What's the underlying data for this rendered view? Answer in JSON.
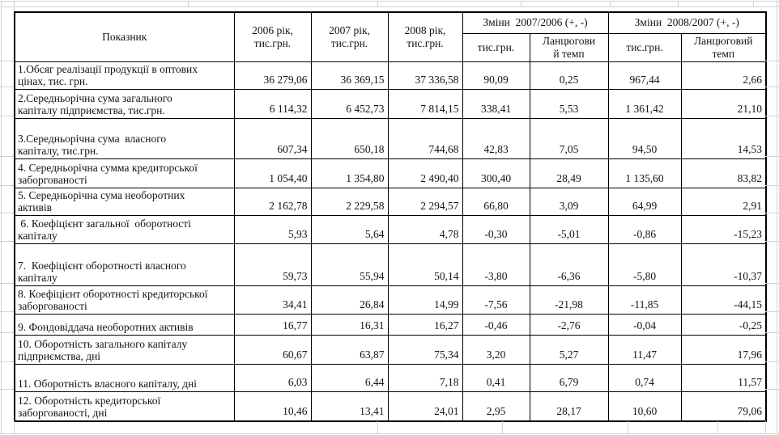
{
  "sheet": {
    "table": {
      "header": {
        "indicator": "Показник",
        "years": [
          "2006 рік,\nтис.грн.",
          "2007 рік,\nтис.грн.",
          "2008 рік,\nтис.грн."
        ],
        "groups": [
          {
            "label": "Зміни  2007/2006 (+, -)",
            "sub": [
              "тис.грн.",
              "Ланцюгови\nй темп"
            ]
          },
          {
            "label": "Зміни  2008/2007 (+, -)",
            "sub": [
              "тис.грн.",
              "Ланцюговий\nтемп"
            ]
          }
        ]
      },
      "rows": [
        {
          "label": "1.Обсяг реалізації продукції в оптових\nцінах, тис. грн.",
          "values": [
            "36 279,06",
            "36 369,15",
            "37 336,58",
            "90,09",
            "0,25",
            "967,44",
            "2,66"
          ]
        },
        {
          "label": "2.Середньорічна сума загального\nкапіталу підприємства, тис.грн.",
          "values": [
            "6 114,32",
            "6 452,73",
            "7 814,15",
            "338,41",
            "5,53",
            "1 361,42",
            "21,10"
          ]
        },
        {
          "label": "3.Середньорічна сума  власного\nкапіталу, тис.грн.",
          "values": [
            "607,34",
            "650,18",
            "744,68",
            "42,83",
            "7,05",
            "94,50",
            "14,53"
          ]
        },
        {
          "label": "4. Середньорічна сумма кредиторської\nзаборгованості",
          "values": [
            "1 054,40",
            "1 354,80",
            "2 490,40",
            "300,40",
            "28,49",
            "1 135,60",
            "83,82"
          ]
        },
        {
          "label": "5. Середньорічна сума необоротних\nактивів",
          "values": [
            "2 162,78",
            "2 229,58",
            "2 294,57",
            "66,80",
            "3,09",
            "64,99",
            "2,91"
          ]
        },
        {
          "label": " 6. Коефіцієнт загальної  оборотності\nкапіталу",
          "values": [
            "5,93",
            "5,64",
            "4,78",
            "-0,30",
            "-5,01",
            "-0,86",
            "-15,23"
          ]
        },
        {
          "label": "7.  Коефіцієнт оборотності власного\nкапіталу",
          "values": [
            "59,73",
            "55,94",
            "50,14",
            "-3,80",
            "-6,36",
            "-5,80",
            "-10,37"
          ]
        },
        {
          "label": "8. Коефіцієнт оборотності кредиторської\nзаборгованості",
          "values": [
            "34,41",
            "26,84",
            "14,99",
            "-7,56",
            "-21,98",
            "-11,85",
            "-44,15"
          ]
        },
        {
          "label": "9. Фондовіддача необоротних активів",
          "values": [
            "16,77",
            "16,31",
            "16,27",
            "-0,46",
            "-2,76",
            "-0,04",
            "-0,25"
          ]
        },
        {
          "label": "10. Оборотність загального капіталу\nпідприємства, дні",
          "values": [
            "60,67",
            "63,87",
            "75,34",
            "3,20",
            "5,27",
            "11,47",
            "17,96"
          ]
        },
        {
          "label": "11. Оборотність власного капіталу, дні",
          "values": [
            "6,03",
            "6,44",
            "7,18",
            "0,41",
            "6,79",
            "0,74",
            "11,57"
          ]
        },
        {
          "label": "12. Оборотність кредиторської\nзаборгованості, дні",
          "values": [
            "10,46",
            "13,41",
            "24,01",
            "2,95",
            "28,17",
            "10,60",
            "79,06"
          ]
        }
      ]
    }
  }
}
